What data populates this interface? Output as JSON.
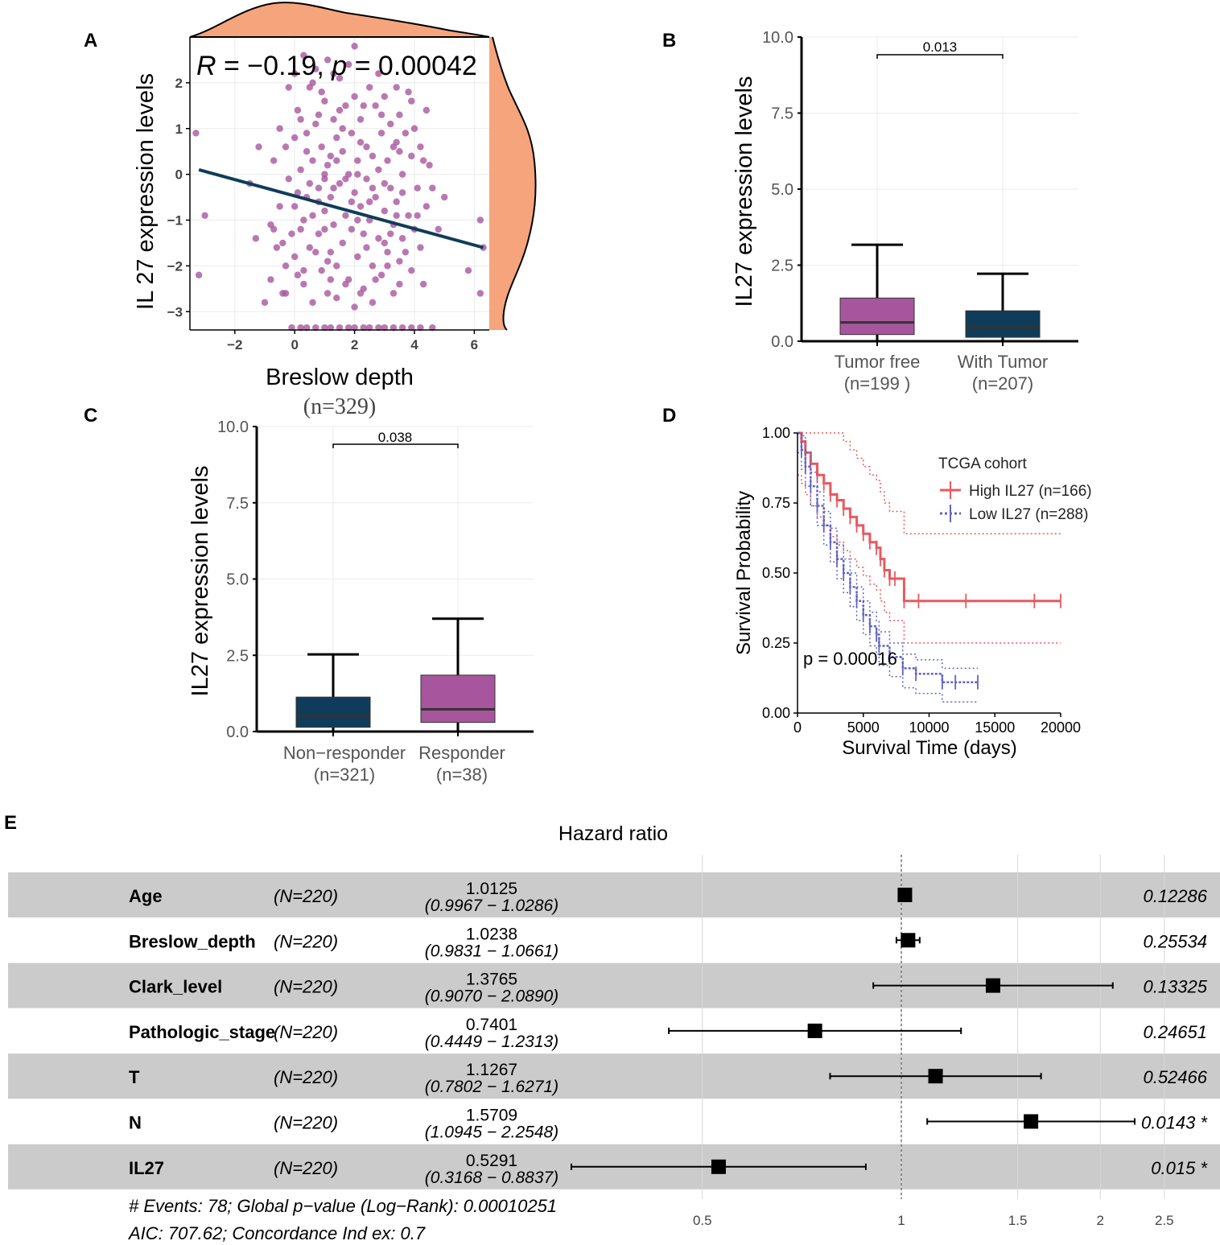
{
  "colors": {
    "purple": "#a7569d",
    "navy": "#0f3c5a",
    "peach": "#f6a47c",
    "high_red": "#e8595e",
    "low_blue": "#6163c2",
    "forest_band": "#cbcbcc"
  },
  "chart_data": [
    {
      "panel": "A",
      "type": "scatter",
      "ylabel": "IL 27 expression levels",
      "xlabel": "Breslow depth",
      "xsub": "(n=329)",
      "stat_R": "R",
      "stat_rest": " = −0.19, ",
      "stat_p": "p",
      "stat_pval": " = 0.00042",
      "xticks": [
        -2,
        0,
        2,
        4,
        6
      ],
      "yticks": [
        -3,
        -2,
        -1,
        0,
        1,
        2
      ],
      "xlim": [
        -3.5,
        6.5
      ],
      "ylim": [
        -3.4,
        3.0
      ],
      "regression": {
        "x1": -3.2,
        "y1": 0.1,
        "x2": 6.3,
        "y2": -1.6
      },
      "points": [
        [
          -3.3,
          0.9
        ],
        [
          -3.2,
          -2.2
        ],
        [
          -3.0,
          -0.9
        ],
        [
          6.2,
          -1.0
        ],
        [
          6.2,
          -2.6
        ],
        [
          6.3,
          -1.6
        ],
        [
          5.8,
          -2.1
        ],
        [
          5.0,
          -0.5
        ],
        [
          4.8,
          -1.2
        ],
        [
          4.6,
          -3.35
        ],
        [
          4.2,
          -3.35
        ],
        [
          3.9,
          -3.35
        ],
        [
          3.6,
          -3.35
        ],
        [
          3.3,
          -3.35
        ],
        [
          3.0,
          -3.35
        ],
        [
          2.8,
          -3.35
        ],
        [
          2.5,
          -3.35
        ],
        [
          2.3,
          -3.35
        ],
        [
          2.0,
          -3.35
        ],
        [
          1.8,
          -3.35
        ],
        [
          1.5,
          -3.35
        ],
        [
          1.2,
          -3.35
        ],
        [
          1.0,
          -3.35
        ],
        [
          0.7,
          -3.35
        ],
        [
          0.4,
          -3.35
        ],
        [
          0.2,
          -3.35
        ],
        [
          -0.1,
          -3.35
        ],
        [
          -0.3,
          -2.6
        ],
        [
          -1.0,
          -2.8
        ],
        [
          -1.5,
          -0.2
        ],
        [
          -1.3,
          -1.4
        ],
        [
          -1.2,
          0.6
        ],
        [
          -0.8,
          -1.1
        ],
        [
          -0.8,
          -2.3
        ],
        [
          -0.7,
          -1.2
        ],
        [
          -0.7,
          0.3
        ],
        [
          -0.5,
          1.0
        ],
        [
          -0.5,
          -0.7
        ],
        [
          -0.4,
          -1.5
        ],
        [
          -0.3,
          0.6
        ],
        [
          -0.3,
          -2.0
        ],
        [
          -0.2,
          1.9
        ],
        [
          -0.2,
          -0.1
        ],
        [
          0.0,
          2.2
        ],
        [
          0.0,
          0.8
        ],
        [
          0.0,
          -0.7
        ],
        [
          0.0,
          -1.8
        ],
        [
          0.1,
          -0.4
        ],
        [
          0.1,
          1.4
        ],
        [
          0.2,
          0.1
        ],
        [
          0.2,
          -1.2
        ],
        [
          0.3,
          2.6
        ],
        [
          0.3,
          -2.4
        ],
        [
          0.4,
          0.9
        ],
        [
          0.4,
          -0.5
        ],
        [
          0.5,
          1.9
        ],
        [
          0.5,
          -1.6
        ],
        [
          0.6,
          0.3
        ],
        [
          0.6,
          -0.9
        ],
        [
          0.7,
          2.3
        ],
        [
          0.7,
          1.1
        ],
        [
          0.8,
          -0.3
        ],
        [
          0.8,
          -1.3
        ],
        [
          0.9,
          0.6
        ],
        [
          0.9,
          -2.1
        ],
        [
          1.0,
          1.6
        ],
        [
          1.0,
          0.0
        ],
        [
          1.0,
          -0.8
        ],
        [
          1.1,
          2.5
        ],
        [
          1.1,
          -1.9
        ],
        [
          1.2,
          0.4
        ],
        [
          1.2,
          -0.5
        ],
        [
          1.3,
          1.2
        ],
        [
          1.3,
          -1.1
        ],
        [
          1.4,
          -2.7
        ],
        [
          1.4,
          0.8
        ],
        [
          1.5,
          -0.2
        ],
        [
          1.5,
          2.1
        ],
        [
          1.6,
          -1.5
        ],
        [
          1.6,
          0.5
        ],
        [
          1.7,
          -0.9
        ],
        [
          1.7,
          1.5
        ],
        [
          1.8,
          -2.3
        ],
        [
          1.8,
          0.0
        ],
        [
          1.9,
          0.9
        ],
        [
          1.9,
          -1.2
        ],
        [
          2.0,
          2.8
        ],
        [
          2.0,
          -0.4
        ],
        [
          2.0,
          1.7
        ],
        [
          2.1,
          -1.8
        ],
        [
          2.1,
          0.3
        ],
        [
          2.2,
          -0.7
        ],
        [
          2.2,
          1.2
        ],
        [
          2.3,
          -2.5
        ],
        [
          2.3,
          -1.3
        ],
        [
          2.4,
          0.6
        ],
        [
          2.4,
          -0.1
        ],
        [
          2.5,
          1.9
        ],
        [
          2.5,
          -1.0
        ],
        [
          2.6,
          -2.0
        ],
        [
          2.6,
          0.4
        ],
        [
          2.7,
          1.5
        ],
        [
          2.7,
          -0.5
        ],
        [
          2.8,
          -1.4
        ],
        [
          2.8,
          0.1
        ],
        [
          2.9,
          0.9
        ],
        [
          2.9,
          -2.2
        ],
        [
          3.0,
          -0.8
        ],
        [
          3.0,
          1.7
        ],
        [
          3.1,
          -1.7
        ],
        [
          3.1,
          0.3
        ],
        [
          3.2,
          -0.3
        ],
        [
          3.2,
          1.1
        ],
        [
          3.3,
          -2.6
        ],
        [
          3.3,
          -1.1
        ],
        [
          3.4,
          0.7
        ],
        [
          3.4,
          -0.6
        ],
        [
          3.5,
          1.3
        ],
        [
          3.5,
          -1.9
        ],
        [
          3.6,
          0.0
        ],
        [
          3.6,
          -1.4
        ],
        [
          3.7,
          0.9
        ],
        [
          3.8,
          -0.9
        ],
        [
          3.8,
          1.8
        ],
        [
          3.9,
          -2.1
        ],
        [
          3.9,
          0.4
        ],
        [
          4.0,
          -1.2
        ],
        [
          4.0,
          1.0
        ],
        [
          4.1,
          -0.3
        ],
        [
          4.2,
          -1.6
        ],
        [
          4.2,
          0.6
        ],
        [
          4.3,
          -2.4
        ],
        [
          4.4,
          1.4
        ],
        [
          4.4,
          -0.7
        ],
        [
          4.5,
          0.2
        ],
        [
          0.2,
          1.2
        ],
        [
          0.6,
          2.0
        ],
        [
          1.1,
          0.2
        ],
        [
          1.3,
          -0.3
        ],
        [
          1.6,
          1.0
        ],
        [
          1.9,
          -0.6
        ],
        [
          2.2,
          0.7
        ],
        [
          2.6,
          -0.3
        ],
        [
          2.9,
          1.3
        ],
        [
          3.2,
          -1.3
        ],
        [
          3.5,
          0.5
        ],
        [
          0.8,
          -0.6
        ],
        [
          1.0,
          -1.2
        ],
        [
          1.2,
          -1.7
        ],
        [
          1.4,
          -2.0
        ],
        [
          1.7,
          -0.1
        ],
        [
          2.1,
          -1.0
        ],
        [
          2.4,
          -1.6
        ],
        [
          2.7,
          -2.3
        ],
        [
          3.0,
          -1.5
        ],
        [
          3.3,
          0.6
        ],
        [
          3.6,
          -0.4
        ],
        [
          0.3,
          -1.0
        ],
        [
          0.5,
          -0.2
        ],
        [
          0.9,
          1.8
        ],
        [
          1.5,
          1.4
        ],
        [
          1.8,
          2.4
        ],
        [
          2.3,
          1.5
        ],
        [
          2.8,
          2.2
        ],
        [
          3.4,
          1.9
        ],
        [
          -0.1,
          -1.3
        ],
        [
          0.3,
          -2.1
        ],
        [
          0.7,
          -1.7
        ],
        [
          1.2,
          -2.3
        ],
        [
          2.0,
          -2.9
        ],
        [
          2.6,
          -2.8
        ],
        [
          1.7,
          -2.4
        ],
        [
          3.1,
          -2.0
        ],
        [
          3.7,
          -1.7
        ],
        [
          4.1,
          -0.9
        ],
        [
          4.6,
          -0.3
        ],
        [
          4.3,
          0.3
        ],
        [
          3.9,
          1.6
        ],
        [
          1.3,
          2.2
        ],
        [
          0.8,
          1.3
        ],
        [
          0.4,
          0.5
        ],
        [
          1.0,
          -0.1
        ],
        [
          1.4,
          0.3
        ],
        [
          2.1,
          0.0
        ],
        [
          2.5,
          -0.6
        ],
        [
          3.0,
          -0.2
        ],
        [
          3.4,
          -0.9
        ],
        [
          -0.6,
          -1.6
        ],
        [
          -0.4,
          -2.6
        ],
        [
          0.1,
          -2.2
        ],
        [
          0.6,
          -2.8
        ],
        [
          1.1,
          -2.6
        ],
        [
          2.2,
          -2.6
        ],
        [
          3.5,
          -2.4
        ]
      ]
    },
    {
      "panel": "B",
      "type": "box",
      "ylabel": "IL27 expression levels",
      "yticks": [
        "0.0",
        "2.5",
        "5.0",
        "7.5",
        "10.0"
      ],
      "ylim": [
        0,
        10
      ],
      "pvalue": "0.013",
      "groups": [
        {
          "label": "Tumor free",
          "n": "(n=199 )",
          "min": 0.0,
          "q1": 0.22,
          "median": 0.62,
          "q3": 1.42,
          "max": 3.17
        },
        {
          "label": "With Tumor",
          "n": "(n=207)",
          "min": 0.0,
          "q1": 0.13,
          "median": 0.45,
          "q3": 1.0,
          "max": 2.22
        }
      ]
    },
    {
      "panel": "C",
      "type": "box",
      "ylabel": "IL27 expression levels",
      "yticks": [
        "0.0",
        "2.5",
        "5.0",
        "7.5",
        "10.0"
      ],
      "ylim": [
        0,
        10
      ],
      "pvalue": "0.038",
      "groups": [
        {
          "label": "Non−responder",
          "n": "(n=321)",
          "min": 0.0,
          "q1": 0.14,
          "median": 0.52,
          "q3": 1.13,
          "max": 2.53
        },
        {
          "label": "Responder",
          "n": "(n=38)",
          "min": 0.0,
          "q1": 0.3,
          "median": 0.73,
          "q3": 1.85,
          "max": 3.7
        }
      ]
    },
    {
      "panel": "D",
      "type": "line",
      "xlabel": "Survival Time (days)",
      "ylabel": "Survival Probability",
      "xticks": [
        "0",
        "5000",
        "10000",
        "15000",
        "20000"
      ],
      "yticks": [
        "0.00",
        "0.25",
        "0.50",
        "0.75",
        "1.00"
      ],
      "xlim": [
        0,
        20000
      ],
      "ylim": [
        0,
        1
      ],
      "pvalue": "p = 0.00016",
      "legend_title": "TCGA cohort",
      "series": [
        {
          "name": "High IL27 (n=166)",
          "x": [
            0,
            300,
            600,
            1000,
            1500,
            2000,
            2500,
            3000,
            3500,
            4000,
            4500,
            5000,
            5500,
            6000,
            6300,
            6600,
            7000,
            7400,
            8100,
            9200,
            12800,
            18000,
            20000
          ],
          "y": [
            1.0,
            0.97,
            0.93,
            0.89,
            0.85,
            0.82,
            0.78,
            0.76,
            0.73,
            0.7,
            0.67,
            0.64,
            0.61,
            0.59,
            0.55,
            0.51,
            0.48,
            0.48,
            0.4,
            0.4,
            0.4,
            0.4,
            0.4
          ]
        },
        {
          "name": "Low IL27 (n=288)",
          "x": [
            0,
            300,
            600,
            1000,
            1500,
            2000,
            2500,
            3000,
            3500,
            4000,
            4500,
            5000,
            5500,
            6000,
            6200,
            7000,
            8000,
            9000,
            11000,
            12000,
            13700
          ],
          "y": [
            1.0,
            0.94,
            0.88,
            0.81,
            0.74,
            0.67,
            0.61,
            0.55,
            0.5,
            0.45,
            0.4,
            0.35,
            0.31,
            0.28,
            0.24,
            0.2,
            0.16,
            0.14,
            0.11,
            0.11,
            0.11
          ]
        }
      ]
    },
    {
      "panel": "E",
      "type": "forest",
      "title": "Hazard ratio",
      "xticks": [
        "0.5",
        "1",
        "1.5",
        "2",
        "2.5"
      ],
      "xtick_values": [
        0.5,
        1,
        1.5,
        2,
        2.5
      ],
      "footer_line1": "# Events: 78; Global p−value (Log−Rank): 0.00010251",
      "footer_line2": "AIC: 707.62; Concordance Ind ex: 0.7",
      "rows": [
        {
          "name": "Age",
          "n": "(N=220)",
          "hr": "1.0125",
          "ci": "(0.9967 − 1.0286)",
          "p": "0.12286",
          "hr_val": 1.0125,
          "lo": 0.9967,
          "hi": 1.0286
        },
        {
          "name": "Breslow_depth",
          "n": "(N=220)",
          "hr": "1.0238",
          "ci": "(0.9831 − 1.0661)",
          "p": "0.25534",
          "hr_val": 1.0238,
          "lo": 0.9831,
          "hi": 1.0661
        },
        {
          "name": "Clark_level",
          "n": "(N=220)",
          "hr": "1.3765",
          "ci": "(0.9070 − 2.0890)",
          "p": "0.13325",
          "hr_val": 1.3765,
          "lo": 0.907,
          "hi": 2.089
        },
        {
          "name": "Pathologic_stage",
          "n": "(N=220)",
          "hr": "0.7401",
          "ci": "(0.4449 − 1.2313)",
          "p": "0.24651",
          "hr_val": 0.7401,
          "lo": 0.4449,
          "hi": 1.2313
        },
        {
          "name": "T",
          "n": "(N=220)",
          "hr": "1.1267",
          "ci": "(0.7802 − 1.6271)",
          "p": "0.52466",
          "hr_val": 1.1267,
          "lo": 0.7802,
          "hi": 1.6271
        },
        {
          "name": "N",
          "n": "(N=220)",
          "hr": "1.5709",
          "ci": "(1.0945 − 2.2548)",
          "p": "0.0143 *",
          "hr_val": 1.5709,
          "lo": 1.0945,
          "hi": 2.2548
        },
        {
          "name": "IL27",
          "n": "(N=220)",
          "hr": "0.5291",
          "ci": "(0.3168 − 0.8837)",
          "p": "0.015 *",
          "hr_val": 0.5291,
          "lo": 0.3168,
          "hi": 0.8837
        }
      ]
    }
  ],
  "panel_labels": [
    "A",
    "B",
    "C",
    "D",
    "E"
  ]
}
